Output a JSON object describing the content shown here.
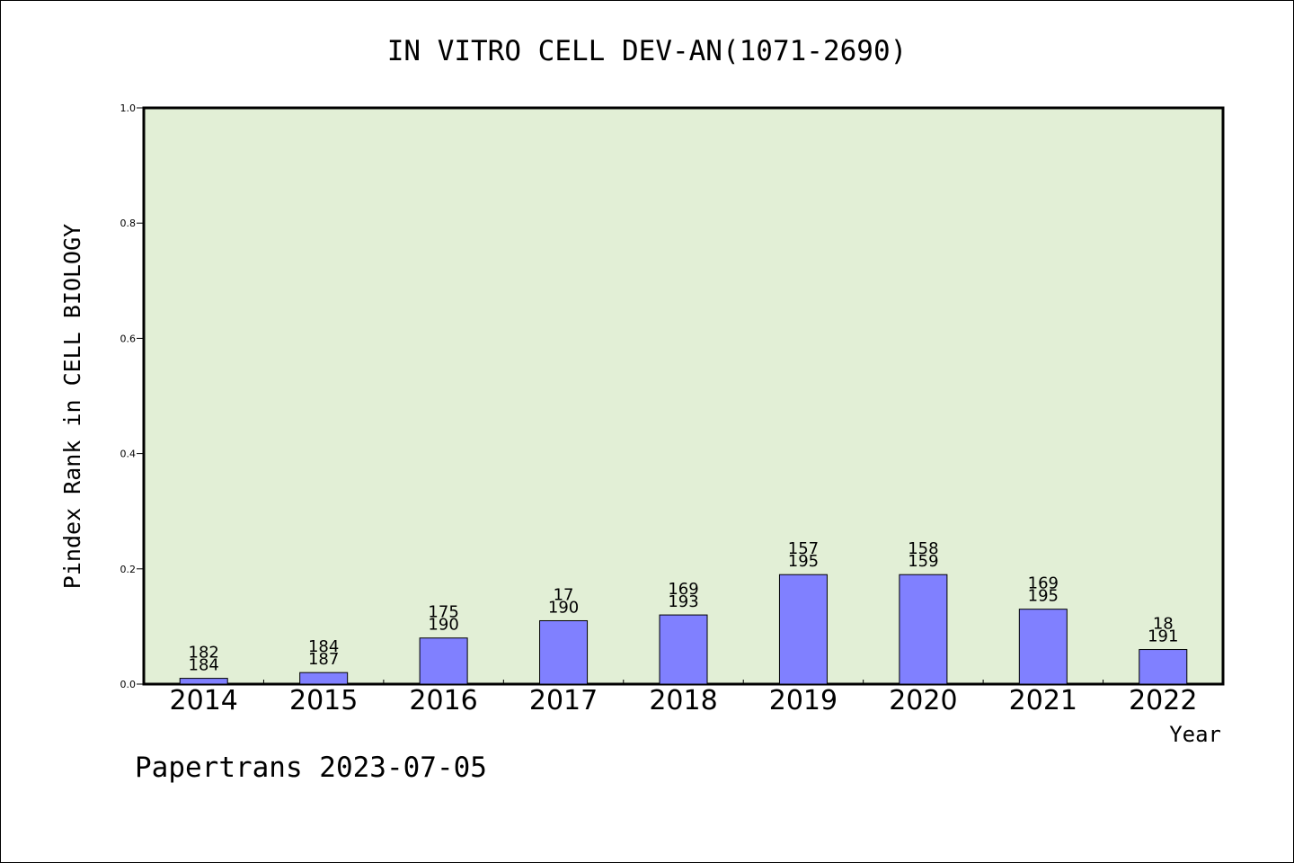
{
  "chart_data": {
    "type": "bar",
    "title": "IN VITRO CELL DEV-AN(1071-2690)",
    "xlabel": "Year",
    "ylabel": "Pindex Rank in CELL BIOLOGY",
    "ylim": [
      0,
      1.0
    ],
    "yticks": [
      "0.0",
      "0.2",
      "0.4",
      "0.6",
      "0.8",
      "1.0"
    ],
    "categories": [
      "2014",
      "2015",
      "2016",
      "2017",
      "2018",
      "2019",
      "2020",
      "2021",
      "2022"
    ],
    "values": [
      0.01,
      0.02,
      0.08,
      0.11,
      0.12,
      0.19,
      0.19,
      0.13,
      0.06
    ],
    "labels_top": [
      "182",
      "184",
      "175",
      "17",
      "169",
      "157",
      "158",
      "169",
      "18"
    ],
    "labels_bottom": [
      "184",
      "187",
      "190",
      "190",
      "193",
      "195",
      "159",
      "195",
      "191"
    ],
    "grid": false,
    "legend": "none",
    "colors": {
      "bar": "#8080ff",
      "plot_bg": "#e2efd6",
      "axis": "#000000"
    }
  },
  "footer": {
    "watermark": "Papertrans 2023-07-05"
  }
}
